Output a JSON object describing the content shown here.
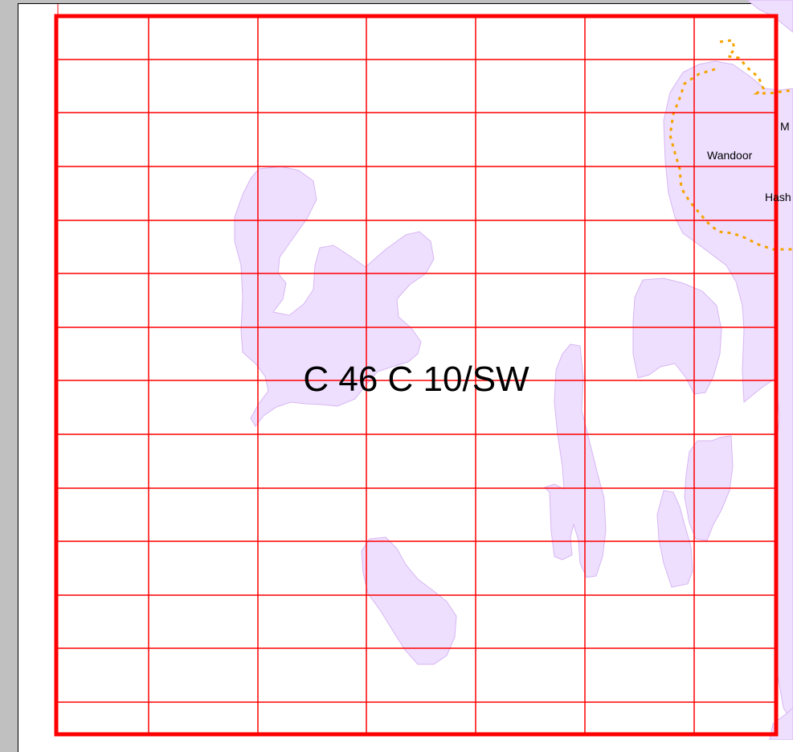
{
  "sheet_label": "C 46 C 10/SW",
  "place_labels": {
    "wandoor": "Wandoor",
    "hash": "Hash",
    "m": "M"
  },
  "colors": {
    "grid": "#ff0000",
    "landmass_fill": "#eedfff",
    "landmass_stroke": "#d7b6f2",
    "boundary": "#f5a300",
    "frame_bg": "#c0c0c0"
  },
  "grid": {
    "columns": 7,
    "rows": 14
  }
}
